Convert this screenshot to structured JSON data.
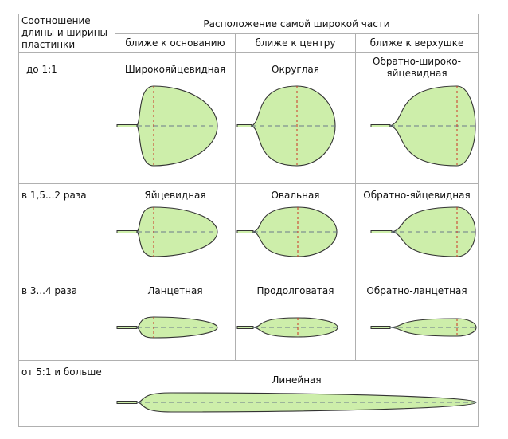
{
  "header": {
    "ratio_label": [
      "Соотношение",
      "длины и ширины",
      "пластинки"
    ],
    "position_title": "Расположение самой широкой части",
    "columns": [
      "ближе к основанию",
      "ближе к центру",
      "ближе к верхушке"
    ]
  },
  "rows": [
    {
      "ratio": "до 1:1",
      "shapes": [
        "Широкояйцевидная",
        "Округлая",
        "Обратно-широко-яйцевидная"
      ]
    },
    {
      "ratio": "в 1,5...2 раза",
      "shapes": [
        "Яйцевидная",
        "Овальная",
        "Обратно-яйцевидная"
      ]
    },
    {
      "ratio": "в 3...4 раза",
      "shapes": [
        "Ланцетная",
        "Продолговатая",
        "Обратно-ланцетная"
      ]
    },
    {
      "ratio": "от 5:1 и больше",
      "shapes": [
        "Линейная"
      ]
    }
  ],
  "obovate_broad_lines": [
    "Обратно-широко-",
    "яйцевидная"
  ],
  "colors": {
    "leaf_fill": "#cdeeaa",
    "outline": "#333333",
    "midrib": "#6a7a8a",
    "width_line": "#cc3322",
    "grid": "#b0b0b0"
  }
}
